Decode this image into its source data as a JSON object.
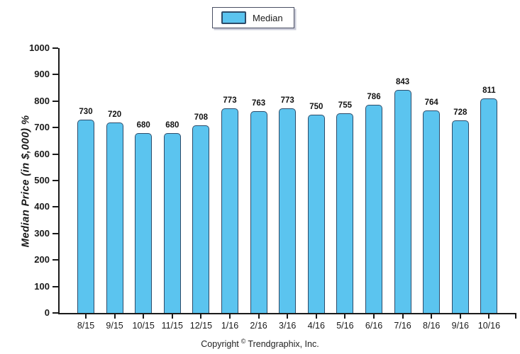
{
  "legend": {
    "label": "Median"
  },
  "footer": {
    "copyright_prefix": "Copyright",
    "copyright_symbol": "©",
    "copyright_suffix": "Trendgraphix, Inc."
  },
  "chart_data": {
    "type": "bar",
    "title": "",
    "xlabel": "",
    "ylabel": "Median Price (in $,000) %",
    "categories": [
      "8/15",
      "9/15",
      "10/15",
      "11/15",
      "12/15",
      "1/16",
      "2/16",
      "3/16",
      "4/16",
      "5/16",
      "6/16",
      "7/16",
      "8/16",
      "9/16",
      "10/16"
    ],
    "series": [
      {
        "name": "Median",
        "values": [
          730,
          720,
          680,
          680,
          708,
          773,
          763,
          773,
          750,
          755,
          786,
          843,
          764,
          728,
          811
        ]
      }
    ],
    "ylim": [
      0,
      1000
    ],
    "yticks": [
      0,
      100,
      200,
      300,
      400,
      500,
      600,
      700,
      800,
      900,
      1000
    ],
    "grid": false,
    "legend_position": "top-center",
    "value_labels": true,
    "bar_color": "#5bc4ef",
    "bar_border_color": "#2d4b69",
    "axis_color": "#1a1a1a"
  }
}
